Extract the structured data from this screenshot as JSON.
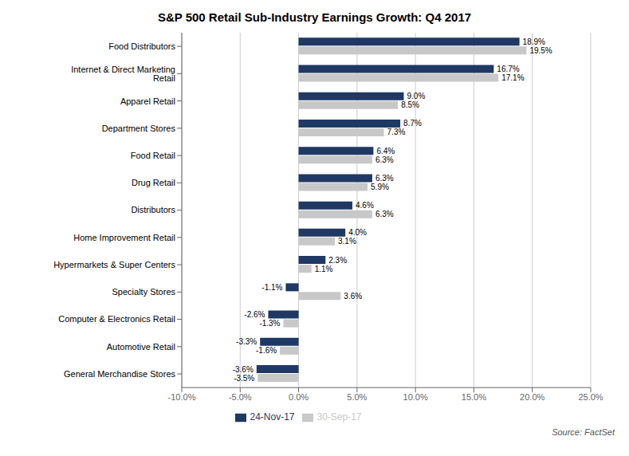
{
  "chart_data": {
    "type": "bar",
    "orientation": "horizontal",
    "title": "S&P 500 Retail Sub-Industry Earnings Growth: Q4 2017",
    "categories": [
      "Food Distributors",
      "Internet & Direct Marketing Retail",
      "Apparel Retail",
      "Department Stores",
      "Food Retail",
      "Drug Retail",
      "Distributors",
      "Home Improvement Retail",
      "Hypermarkets & Super Centers",
      "Specialty Stores",
      "Computer & Electronics Retail",
      "Automotive Retail",
      "General Merchandise Stores"
    ],
    "series": [
      {
        "name": "24-Nov-17",
        "color": "#1F3864",
        "values": [
          18.9,
          16.7,
          9.0,
          8.7,
          6.4,
          6.3,
          4.6,
          4.0,
          2.3,
          -1.1,
          -2.6,
          -3.3,
          -3.6
        ],
        "value_labels": [
          "18.9%",
          "16.7%",
          "9.0%",
          "8.7%",
          "6.4%",
          "6.3%",
          "4.6%",
          "4.0%",
          "2.3%",
          "-1.1%",
          "-2.6%",
          "-3.3%",
          "-3.6%"
        ]
      },
      {
        "name": "30-Sep-17",
        "color": "#C8C8C8",
        "values": [
          19.5,
          17.1,
          8.5,
          7.3,
          6.3,
          5.9,
          6.3,
          3.1,
          1.1,
          3.6,
          -1.3,
          -1.6,
          -3.5
        ],
        "value_labels": [
          "19.5%",
          "17.1%",
          "8.5%",
          "7.3%",
          "6.3%",
          "5.9%",
          "6.3%",
          "3.1%",
          "1.1%",
          "3.6%",
          "-1.3%",
          "-1.6%",
          "-3.5%"
        ]
      }
    ],
    "xlim": [
      -10.0,
      25.0
    ],
    "xticks": [
      {
        "value": -10.0,
        "label": "-10.0%"
      },
      {
        "value": -5.0,
        "label": "-5.0%"
      },
      {
        "value": 0.0,
        "label": "0.0%"
      },
      {
        "value": 5.0,
        "label": "5.0%"
      },
      {
        "value": 10.0,
        "label": "10.0%"
      },
      {
        "value": 15.0,
        "label": "15.0%"
      },
      {
        "value": 20.0,
        "label": "20.0%"
      },
      {
        "value": 25.0,
        "label": "25.0%"
      }
    ],
    "grid": true,
    "legend": "bottom",
    "data_labels": true,
    "annotations": [
      "Source: FactSet"
    ]
  }
}
